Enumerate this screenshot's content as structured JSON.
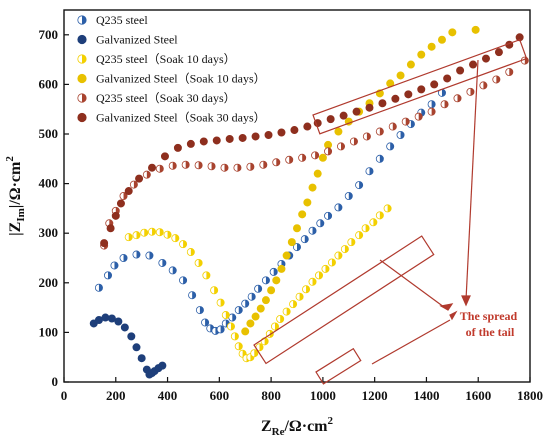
{
  "chart_data": {
    "type": "scatter",
    "xlabel_main": "Z",
    "xlabel_sub": "Re",
    "xlabel_unit": "/Ω·cm",
    "xlabel_sup": "2",
    "ylabel_main": "|Z",
    "ylabel_sub": "Im",
    "ylabel_unit": "|/Ω·cm",
    "ylabel_sup": "2",
    "xlim": [
      0,
      1800
    ],
    "ylim": [
      0,
      750
    ],
    "xticks": [
      0,
      200,
      400,
      600,
      800,
      1000,
      1200,
      1400,
      1600,
      1800
    ],
    "yticks": [
      0,
      100,
      200,
      300,
      400,
      500,
      600,
      700
    ],
    "grid": false,
    "legend_position": "top-left",
    "annotation": {
      "text_line1": "The spread",
      "text_line2": "of the tail"
    },
    "series": [
      {
        "name": "Q235 steel",
        "color": "#2c5fa8",
        "marker": "half-light",
        "points": [
          [
            135,
            190
          ],
          [
            170,
            215
          ],
          [
            195,
            235
          ],
          [
            230,
            250
          ],
          [
            280,
            257
          ],
          [
            330,
            255
          ],
          [
            380,
            240
          ],
          [
            420,
            225
          ],
          [
            460,
            205
          ],
          [
            495,
            175
          ],
          [
            525,
            145
          ],
          [
            545,
            120
          ],
          [
            565,
            108
          ],
          [
            585,
            103
          ],
          [
            605,
            106
          ],
          [
            625,
            118
          ],
          [
            650,
            130
          ],
          [
            675,
            145
          ],
          [
            700,
            158
          ],
          [
            725,
            172
          ],
          [
            750,
            188
          ],
          [
            780,
            205
          ],
          [
            810,
            222
          ],
          [
            840,
            238
          ],
          [
            870,
            255
          ],
          [
            900,
            272
          ],
          [
            930,
            288
          ],
          [
            960,
            305
          ],
          [
            990,
            320
          ],
          [
            1020,
            335
          ],
          [
            1060,
            352
          ],
          [
            1100,
            375
          ],
          [
            1140,
            397
          ],
          [
            1180,
            425
          ],
          [
            1220,
            450
          ],
          [
            1260,
            475
          ],
          [
            1300,
            498
          ],
          [
            1340,
            520
          ],
          [
            1380,
            543
          ],
          [
            1420,
            560
          ],
          [
            1460,
            583
          ]
        ]
      },
      {
        "name": "Galvanized Steel",
        "color": "#1e3f7a",
        "marker": "half-dark",
        "points": [
          [
            115,
            118
          ],
          [
            135,
            125
          ],
          [
            160,
            130
          ],
          [
            185,
            128
          ],
          [
            210,
            122
          ],
          [
            235,
            110
          ],
          [
            260,
            92
          ],
          [
            280,
            70
          ],
          [
            300,
            48
          ],
          [
            320,
            25
          ],
          [
            330,
            15
          ],
          [
            340,
            18
          ],
          [
            350,
            22
          ],
          [
            365,
            28
          ],
          [
            380,
            33
          ]
        ]
      },
      {
        "name": "Q235 steel（Soak 10 days）",
        "color": "#f3d000",
        "marker": "half-light",
        "points": [
          [
            250,
            292
          ],
          [
            280,
            296
          ],
          [
            310,
            301
          ],
          [
            340,
            303
          ],
          [
            370,
            302
          ],
          [
            400,
            297
          ],
          [
            430,
            290
          ],
          [
            460,
            278
          ],
          [
            490,
            262
          ],
          [
            520,
            240
          ],
          [
            550,
            215
          ],
          [
            580,
            185
          ],
          [
            605,
            160
          ],
          [
            625,
            135
          ],
          [
            645,
            112
          ],
          [
            660,
            92
          ],
          [
            675,
            72
          ],
          [
            690,
            57
          ],
          [
            705,
            48
          ],
          [
            720,
            50
          ],
          [
            735,
            58
          ],
          [
            755,
            70
          ],
          [
            775,
            82
          ],
          [
            795,
            97
          ],
          [
            815,
            112
          ],
          [
            835,
            127
          ],
          [
            860,
            142
          ],
          [
            885,
            157
          ],
          [
            910,
            172
          ],
          [
            935,
            187
          ],
          [
            960,
            202
          ],
          [
            985,
            215
          ],
          [
            1010,
            228
          ],
          [
            1035,
            241
          ],
          [
            1060,
            255
          ],
          [
            1085,
            268
          ],
          [
            1110,
            282
          ],
          [
            1140,
            296
          ],
          [
            1165,
            310
          ],
          [
            1195,
            322
          ],
          [
            1220,
            336
          ],
          [
            1250,
            350
          ]
        ]
      },
      {
        "name": "Galvanized Steel（Soak 10 days）",
        "color": "#e8c100",
        "marker": "half-dark",
        "points": [
          [
            700,
            102
          ],
          [
            720,
            118
          ],
          [
            740,
            132
          ],
          [
            760,
            148
          ],
          [
            780,
            165
          ],
          [
            800,
            185
          ],
          [
            820,
            205
          ],
          [
            840,
            228
          ],
          [
            860,
            255
          ],
          [
            880,
            282
          ],
          [
            900,
            310
          ],
          [
            920,
            338
          ],
          [
            940,
            362
          ],
          [
            960,
            392
          ],
          [
            980,
            420
          ],
          [
            1000,
            452
          ],
          [
            1020,
            478
          ],
          [
            1060,
            505
          ],
          [
            1100,
            525
          ],
          [
            1140,
            545
          ],
          [
            1180,
            562
          ],
          [
            1220,
            582
          ],
          [
            1260,
            602
          ],
          [
            1300,
            618
          ],
          [
            1340,
            640
          ],
          [
            1380,
            660
          ],
          [
            1420,
            676
          ],
          [
            1460,
            690
          ],
          [
            1500,
            705
          ],
          [
            1590,
            710
          ]
        ]
      },
      {
        "name": "Q235 steel（Soak 30 days）",
        "color": "#a8432f",
        "marker": "half-light",
        "points": [
          [
            155,
            275
          ],
          [
            175,
            320
          ],
          [
            200,
            345
          ],
          [
            230,
            375
          ],
          [
            270,
            398
          ],
          [
            320,
            418
          ],
          [
            370,
            430
          ],
          [
            420,
            436
          ],
          [
            470,
            438
          ],
          [
            520,
            437
          ],
          [
            570,
            435
          ],
          [
            620,
            432
          ],
          [
            670,
            432
          ],
          [
            720,
            434
          ],
          [
            770,
            438
          ],
          [
            820,
            443
          ],
          [
            870,
            448
          ],
          [
            920,
            452
          ],
          [
            970,
            457
          ],
          [
            1020,
            465
          ],
          [
            1070,
            475
          ],
          [
            1120,
            485
          ],
          [
            1170,
            495
          ],
          [
            1220,
            505
          ],
          [
            1270,
            515
          ],
          [
            1320,
            525
          ],
          [
            1370,
            535
          ],
          [
            1420,
            545
          ],
          [
            1470,
            560
          ],
          [
            1520,
            572
          ],
          [
            1570,
            585
          ],
          [
            1620,
            598
          ],
          [
            1670,
            610
          ],
          [
            1720,
            625
          ],
          [
            1780,
            648
          ]
        ]
      },
      {
        "name": "Galvanized Steel（Soak 30 days）",
        "color": "#8e2f1e",
        "marker": "half-dark",
        "points": [
          [
            155,
            280
          ],
          [
            180,
            310
          ],
          [
            200,
            335
          ],
          [
            220,
            360
          ],
          [
            250,
            385
          ],
          [
            290,
            410
          ],
          [
            340,
            432
          ],
          [
            390,
            455
          ],
          [
            440,
            472
          ],
          [
            490,
            480
          ],
          [
            540,
            485
          ],
          [
            590,
            487
          ],
          [
            640,
            490
          ],
          [
            690,
            492
          ],
          [
            740,
            495
          ],
          [
            790,
            498
          ],
          [
            840,
            503
          ],
          [
            890,
            508
          ],
          [
            940,
            515
          ],
          [
            980,
            522
          ],
          [
            1030,
            530
          ],
          [
            1080,
            537
          ],
          [
            1130,
            545
          ],
          [
            1180,
            553
          ],
          [
            1230,
            562
          ],
          [
            1280,
            571
          ],
          [
            1330,
            580
          ],
          [
            1380,
            590
          ],
          [
            1430,
            600
          ],
          [
            1480,
            612
          ],
          [
            1530,
            628
          ],
          [
            1580,
            640
          ],
          [
            1630,
            652
          ],
          [
            1680,
            665
          ],
          [
            1720,
            680
          ],
          [
            1760,
            695
          ]
        ]
      }
    ]
  }
}
